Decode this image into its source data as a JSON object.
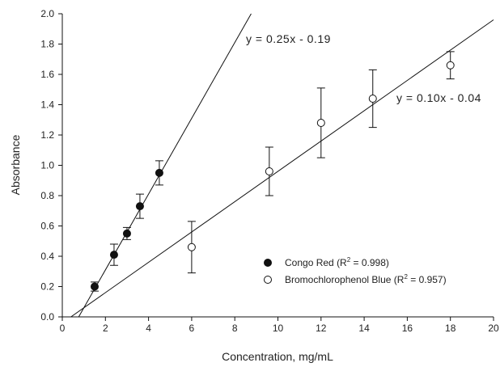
{
  "chart_data": {
    "type": "scatter",
    "xlabel": "Concentration, mg/mL",
    "ylabel": "Absorbance",
    "xlim": [
      0,
      20
    ],
    "ylim": [
      0,
      2.0
    ],
    "xticks": [
      "0",
      "2",
      "4",
      "6",
      "8",
      "10",
      "12",
      "14",
      "16",
      "18",
      "20"
    ],
    "yticks": [
      "0.0",
      "0.2",
      "0.4",
      "0.6",
      "0.8",
      "1.0",
      "1.2",
      "1.4",
      "1.6",
      "1.8",
      "2.0"
    ],
    "grid": false,
    "legend_position": "lower-right",
    "series": [
      {
        "name": "Congo Red",
        "r2": "0.998",
        "marker": "filled-circle",
        "color": "#111111",
        "points": [
          {
            "x": 1.5,
            "y": 0.2,
            "err": 0.03
          },
          {
            "x": 2.4,
            "y": 0.41,
            "err": 0.07
          },
          {
            "x": 3.0,
            "y": 0.55,
            "err": 0.04
          },
          {
            "x": 3.6,
            "y": 0.73,
            "err": 0.08
          },
          {
            "x": 4.5,
            "y": 0.95,
            "err": 0.08
          }
        ],
        "fit": {
          "slope": 0.25,
          "intercept": -0.19,
          "label": "y = 0.25x - 0.19"
        }
      },
      {
        "name": "Bromochlorophenol Blue",
        "r2": "0.957",
        "marker": "open-circle",
        "color": "#111111",
        "points": [
          {
            "x": 6.0,
            "y": 0.46,
            "err": 0.17
          },
          {
            "x": 9.6,
            "y": 0.96,
            "err": 0.16
          },
          {
            "x": 12.0,
            "y": 1.28,
            "err": 0.23
          },
          {
            "x": 14.4,
            "y": 1.44,
            "err": 0.19
          },
          {
            "x": 18.0,
            "y": 1.66,
            "err": 0.09
          }
        ],
        "fit": {
          "slope": 0.1,
          "intercept": -0.04,
          "label": "y = 0.10x - 0.04"
        }
      }
    ]
  }
}
